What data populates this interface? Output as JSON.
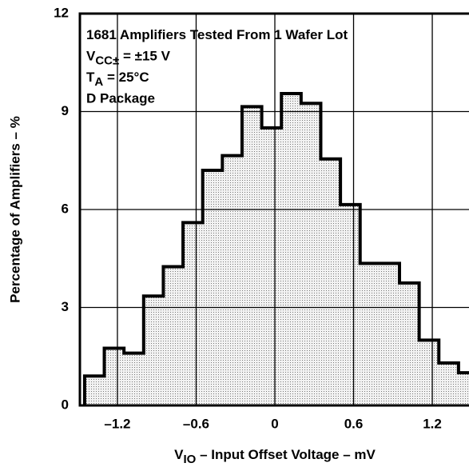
{
  "chart_data": {
    "type": "histogram",
    "annotations": [
      [
        "1681 Amplifiers Tested From 1 Wafer Lot"
      ],
      [
        "V",
        "CC±",
        " = ±15 V"
      ],
      [
        "T",
        "A",
        " = 25°C"
      ],
      [
        "D Package"
      ]
    ],
    "xlabel": [
      "V",
      "IO",
      " – Input Offset Voltage – mV"
    ],
    "ylabel": "Percentage of Amplifiers – %",
    "bins": [
      -1.45,
      -1.3,
      -1.15,
      -1.0,
      -0.85,
      -0.7,
      -0.55,
      -0.4,
      -0.25,
      -0.1,
      0.05,
      0.2,
      0.35,
      0.5,
      0.65,
      0.8,
      0.95,
      1.1,
      1.25,
      1.4,
      1.55
    ],
    "values": [
      0.9,
      1.75,
      1.6,
      3.35,
      4.25,
      5.6,
      7.2,
      7.65,
      9.15,
      8.5,
      9.55,
      9.25,
      7.55,
      6.15,
      4.35,
      4.35,
      3.75,
      2.0,
      1.3,
      1.0
    ],
    "xlim": [
      -1.5,
      1.5
    ],
    "ylim": [
      0,
      12
    ],
    "xticks": [
      {
        "value": -1.2,
        "label": "–1.2"
      },
      {
        "value": -0.6,
        "label": "–0.6"
      },
      0,
      0.6,
      1.2
    ],
    "yticks": [
      0,
      3,
      6,
      9,
      12
    ],
    "grid": true
  }
}
